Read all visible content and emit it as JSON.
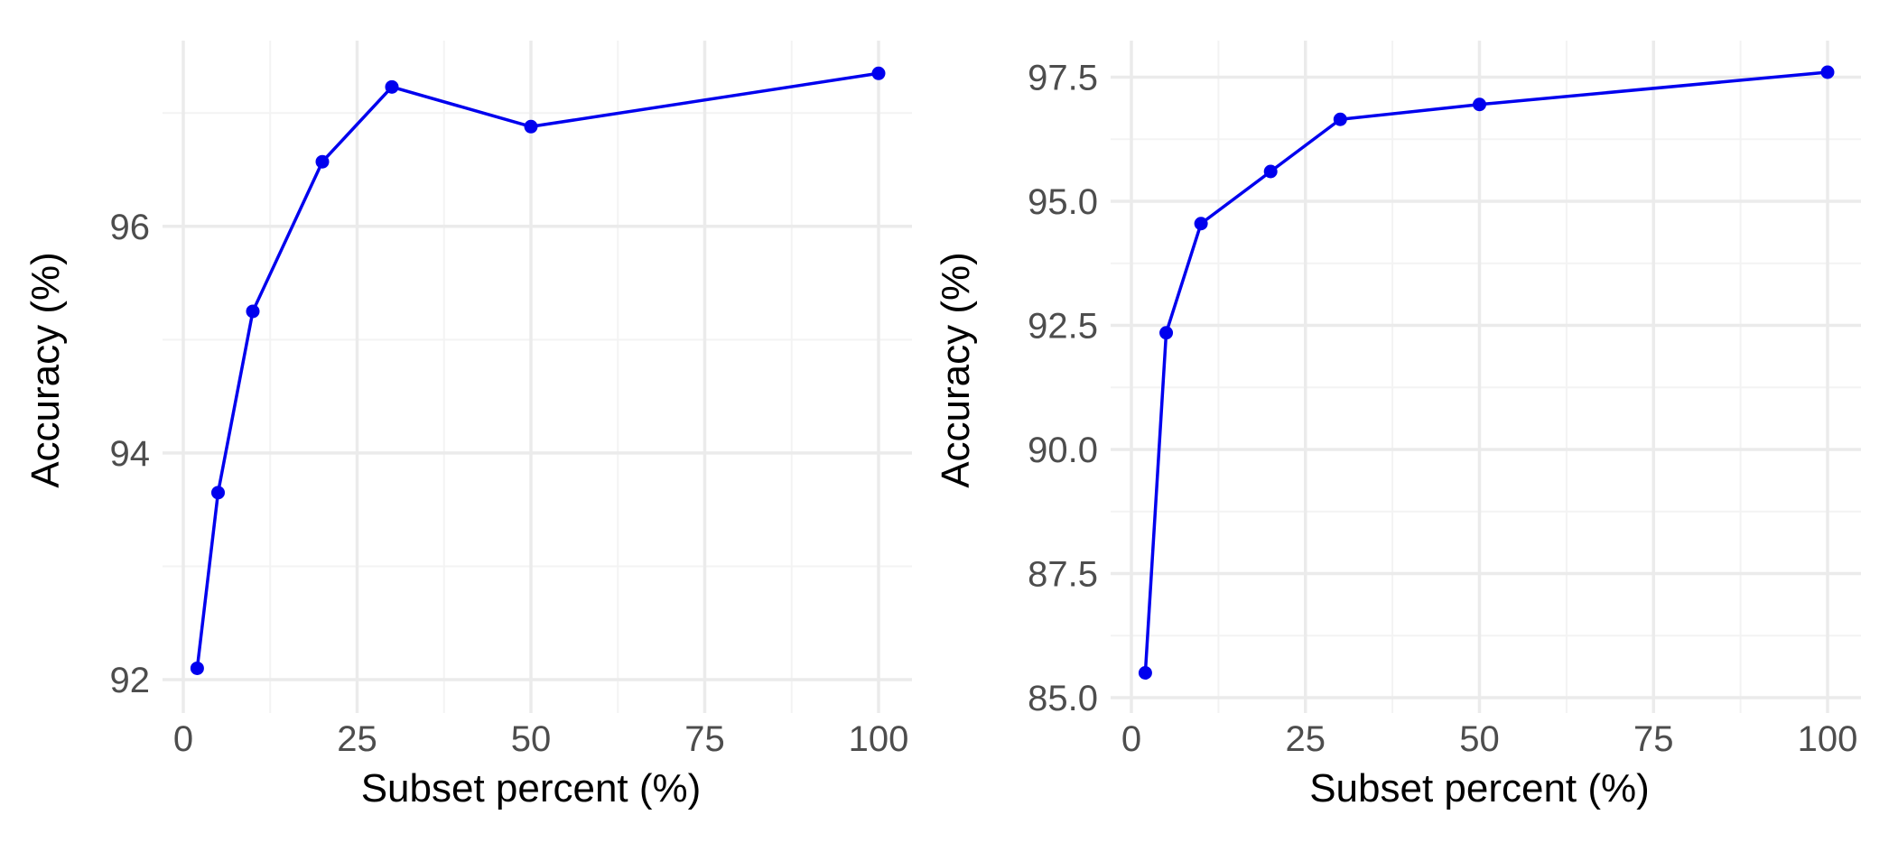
{
  "colors": {
    "series": "#0000ee",
    "grid_major": "#ebebeb",
    "grid_minor": "#f3f3f3",
    "tick_text": "#4d4d4d",
    "title_text": "#000000"
  },
  "chart_data": [
    {
      "type": "line",
      "xlabel": "Subset percent (%)",
      "ylabel": "Accuracy (%)",
      "xlim": [
        0,
        100
      ],
      "ylim": [
        92,
        97.4
      ],
      "x_ticks": [
        0,
        25,
        50,
        75,
        100
      ],
      "x_tick_labels": [
        "0",
        "25",
        "50",
        "75",
        "100"
      ],
      "x_minor_ticks": [
        12.5,
        37.5,
        62.5,
        87.5
      ],
      "y_ticks": [
        92,
        94,
        96
      ],
      "y_tick_labels": [
        "92",
        "94",
        "96"
      ],
      "y_minor_ticks": [
        93,
        95,
        97
      ],
      "grid": true,
      "legend": "none",
      "series": [
        {
          "x": [
            2,
            5,
            10,
            20,
            30,
            50,
            100
          ],
          "y": [
            92.1,
            93.65,
            95.25,
            96.57,
            97.23,
            96.88,
            97.35
          ]
        }
      ]
    },
    {
      "type": "line",
      "xlabel": "Subset percent (%)",
      "ylabel": "Accuracy (%)",
      "xlim": [
        0,
        100
      ],
      "ylim": [
        85,
        97.6
      ],
      "x_ticks": [
        0,
        25,
        50,
        75,
        100
      ],
      "x_tick_labels": [
        "0",
        "25",
        "50",
        "75",
        "100"
      ],
      "x_minor_ticks": [
        12.5,
        37.5,
        62.5,
        87.5
      ],
      "y_ticks": [
        85,
        87.5,
        90,
        92.5,
        95,
        97.5
      ],
      "y_tick_labels": [
        "85.0",
        "87.5",
        "90.0",
        "92.5",
        "95.0",
        "97.5"
      ],
      "y_minor_ticks": [
        86.25,
        88.75,
        91.25,
        93.75,
        96.25
      ],
      "grid": true,
      "legend": "none",
      "series": [
        {
          "x": [
            2,
            5,
            10,
            20,
            30,
            50,
            100
          ],
          "y": [
            85.5,
            92.35,
            94.55,
            95.6,
            96.65,
            96.95,
            97.6
          ]
        }
      ]
    }
  ]
}
